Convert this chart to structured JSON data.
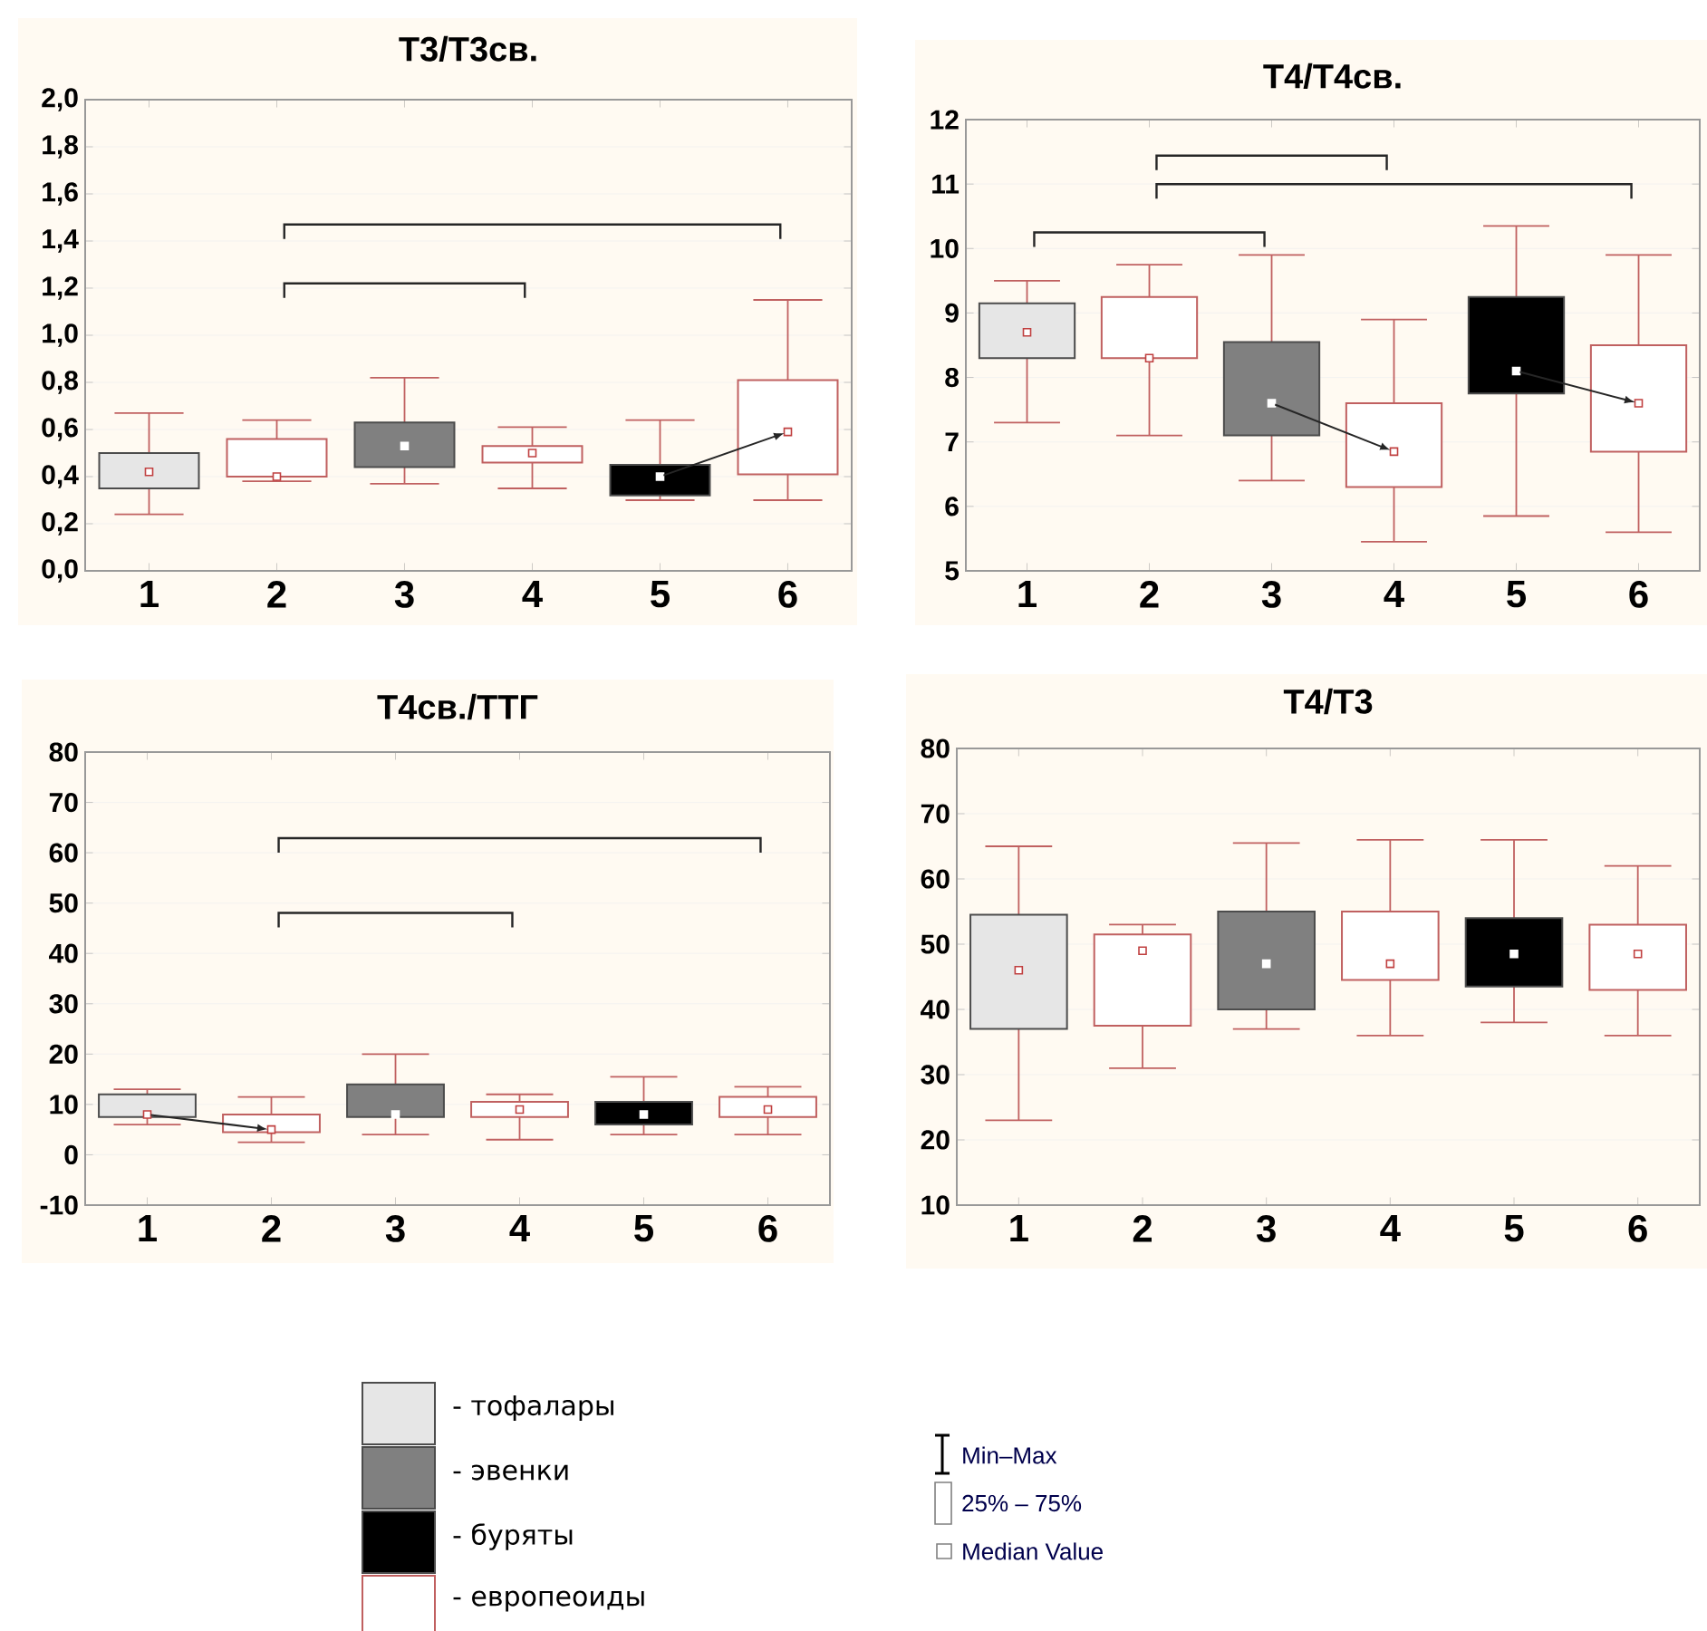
{
  "chart_data": [
    {
      "type": "box",
      "title": "T3/T3св.",
      "categories": [
        "1",
        "2",
        "3",
        "4",
        "5",
        "6"
      ],
      "ylim": [
        0,
        2
      ],
      "yticks": [
        {
          "value": 0,
          "label": "0,0"
        },
        {
          "value": 0.2,
          "label": "0,2"
        },
        {
          "value": 0.4,
          "label": "0,4"
        },
        {
          "value": 0.6,
          "label": "0,6"
        },
        {
          "value": 0.8,
          "label": "0,8"
        },
        {
          "value": 1.0,
          "label": "1,0"
        },
        {
          "value": 1.2,
          "label": "1,2"
        },
        {
          "value": 1.4,
          "label": "1,4"
        },
        {
          "value": 1.6,
          "label": "1,6"
        },
        {
          "value": 1.8,
          "label": "1,8"
        },
        {
          "value": 2.0,
          "label": "2,0"
        }
      ],
      "grid": "y",
      "marker": "square",
      "series": [
        {
          "color": "#e6e6e6",
          "boxes": [
            {
              "low": 0.24,
              "q1": 0.35,
              "median": 0.42,
              "q3": 0.5,
              "high": 0.67
            },
            null,
            null,
            null,
            null,
            null
          ]
        },
        {
          "color": "#808080",
          "boxes": [
            null,
            null,
            {
              "low": 0.37,
              "q1": 0.44,
              "median": 0.53,
              "q3": 0.63,
              "high": 0.82
            },
            null,
            null,
            null
          ]
        },
        {
          "color": "#000000",
          "boxes": [
            null,
            null,
            null,
            null,
            {
              "low": 0.3,
              "q1": 0.32,
              "median": 0.4,
              "q3": 0.45,
              "high": 0.64
            },
            null
          ]
        },
        {
          "color": "#ffffff",
          "boxes": [
            null,
            {
              "low": 0.38,
              "q1": 0.4,
              "median": 0.4,
              "q3": 0.56,
              "high": 0.64
            },
            null,
            {
              "low": 0.35,
              "q1": 0.46,
              "median": 0.5,
              "q3": 0.53,
              "high": 0.61
            },
            null,
            {
              "low": 0.3,
              "q1": 0.41,
              "median": 0.59,
              "q3": 0.81,
              "high": 1.15
            }
          ]
        }
      ]
    },
    {
      "type": "box",
      "title": "T4/T4св.",
      "categories": [
        "1",
        "2",
        "3",
        "4",
        "5",
        "6"
      ],
      "ylim": [
        5,
        12
      ],
      "yticks": [
        5,
        6,
        7,
        8,
        9,
        10,
        11,
        12
      ],
      "grid": "y",
      "marker": "square",
      "series": [
        {
          "color": "#e6e6e6",
          "boxes": [
            {
              "low": 7.3,
              "q1": 8.3,
              "median": 8.7,
              "q3": 9.15,
              "high": 9.5
            },
            null,
            null,
            null,
            null,
            null
          ]
        },
        {
          "color": "#808080",
          "boxes": [
            null,
            null,
            {
              "low": 6.4,
              "q1": 7.1,
              "median": 7.6,
              "q3": 8.55,
              "high": 9.9
            },
            null,
            null,
            null
          ]
        },
        {
          "color": "#000000",
          "boxes": [
            null,
            null,
            null,
            null,
            {
              "low": 5.85,
              "q1": 7.75,
              "median": 8.1,
              "q3": 9.25,
              "high": 10.35
            },
            null
          ]
        },
        {
          "color": "#ffffff",
          "boxes": [
            null,
            {
              "low": 7.1,
              "q1": 8.3,
              "median": 8.3,
              "q3": 9.25,
              "high": 9.75
            },
            null,
            {
              "low": 5.45,
              "q1": 6.3,
              "median": 6.85,
              "q3": 7.6,
              "high": 8.9
            },
            null,
            {
              "low": 5.6,
              "q1": 6.85,
              "median": 7.6,
              "q3": 8.5,
              "high": 9.9
            }
          ]
        }
      ]
    },
    {
      "type": "box",
      "title": "T4св./ТТГ",
      "categories": [
        "1",
        "2",
        "3",
        "4",
        "5",
        "6"
      ],
      "ylim": [
        -10,
        80
      ],
      "yticks": [
        -10,
        0,
        10,
        20,
        30,
        40,
        50,
        60,
        70,
        80
      ],
      "grid": "y",
      "marker": "square",
      "series": [
        {
          "color": "#e6e6e6",
          "boxes": [
            {
              "low": 6,
              "q1": 7.5,
              "median": 8,
              "q3": 12,
              "high": 13
            },
            null,
            null,
            null,
            null,
            null
          ]
        },
        {
          "color": "#808080",
          "boxes": [
            null,
            null,
            {
              "low": 4,
              "q1": 7.5,
              "median": 8,
              "q3": 14,
              "high": 20
            },
            null,
            null,
            null
          ]
        },
        {
          "color": "#000000",
          "boxes": [
            null,
            null,
            null,
            null,
            {
              "low": 4,
              "q1": 6,
              "median": 8,
              "q3": 10.5,
              "high": 15.5
            },
            null
          ]
        },
        {
          "color": "#ffffff",
          "boxes": [
            null,
            {
              "low": 2.5,
              "q1": 4.5,
              "median": 5,
              "q3": 8,
              "high": 11.5
            },
            null,
            {
              "low": 3,
              "q1": 7.5,
              "median": 9,
              "q3": 10.5,
              "high": 12
            },
            null,
            {
              "low": 4,
              "q1": 7.5,
              "median": 9,
              "q3": 11.5,
              "high": 13.5
            }
          ]
        }
      ]
    },
    {
      "type": "box",
      "title": "T4/T3",
      "categories": [
        "1",
        "2",
        "3",
        "4",
        "5",
        "6"
      ],
      "ylim": [
        10,
        80
      ],
      "yticks": [
        10,
        20,
        30,
        40,
        50,
        60,
        70,
        80
      ],
      "grid": "y",
      "marker": "square",
      "legend": "bottom",
      "annotations": [
        "Min–Max",
        "25% – 75%",
        "Median Value"
      ],
      "series": [
        {
          "name": "- тофалары",
          "color": "#e6e6e6",
          "boxes": [
            {
              "low": 23,
              "q1": 37,
              "median": 46,
              "q3": 54.5,
              "high": 65
            },
            null,
            null,
            null,
            null,
            null
          ]
        },
        {
          "name": "- эвенки",
          "color": "#808080",
          "boxes": [
            null,
            null,
            {
              "low": 37,
              "q1": 40,
              "median": 47,
              "q3": 55,
              "high": 65.5
            },
            null,
            null,
            null
          ]
        },
        {
          "name": "- буряты",
          "color": "#000000",
          "boxes": [
            null,
            null,
            null,
            null,
            {
              "low": 38,
              "q1": 43.5,
              "median": 48.5,
              "q3": 54,
              "high": 66
            },
            null
          ]
        },
        {
          "name": "- европеоиды",
          "color": "#ffffff",
          "boxes": [
            null,
            {
              "low": 31,
              "q1": 37.5,
              "median": 49,
              "q3": 51.5,
              "high": 53
            },
            null,
            {
              "low": 36,
              "q1": 44.5,
              "median": 47,
              "q3": 55,
              "high": 66
            },
            null,
            {
              "low": 36,
              "q1": 43,
              "median": 48.5,
              "q3": 53,
              "high": 62
            }
          ]
        }
      ]
    }
  ]
}
